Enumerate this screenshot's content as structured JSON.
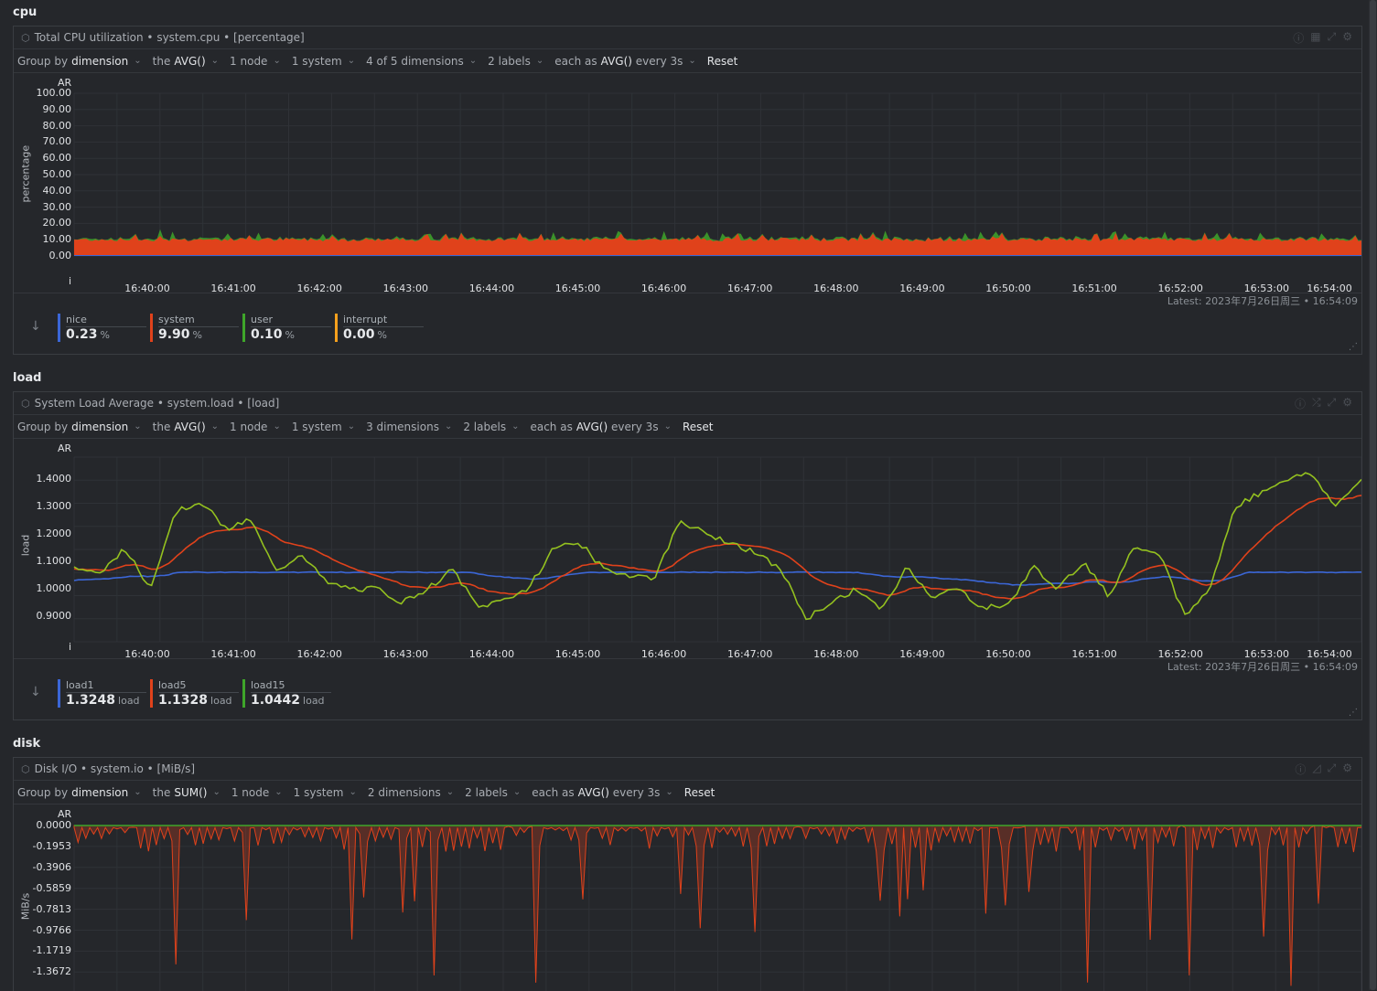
{
  "sections": [
    {
      "title": "cpu",
      "header": {
        "title": "Total CPU utilization • system.cpu • [percentage]"
      },
      "toolbar": {
        "group_by": "Group by",
        "group_by_value": "dimension",
        "agg_prefix": "the",
        "agg_value": "AVG()",
        "nodes": "1 node",
        "systems": "1 system",
        "dimensions": "4 of 5 dimensions",
        "labels": "2 labels",
        "each_prefix": "each as",
        "each_value": "AVG()",
        "each_suffix": "every 3s",
        "reset": "Reset"
      },
      "chart": {
        "ar": "AR",
        "ylabel": "percentage",
        "yticks": [
          "100.00",
          "90.00",
          "80.00",
          "70.00",
          "60.00",
          "50.00",
          "40.00",
          "30.00",
          "20.00",
          "10.00",
          "0.00"
        ],
        "xticks": [
          "16:40:00",
          "16:41:00",
          "16:42:00",
          "16:43:00",
          "16:44:00",
          "16:45:00",
          "16:46:00",
          "16:47:00",
          "16:48:00",
          "16:49:00",
          "16:50:00",
          "16:51:00",
          "16:52:00",
          "16:53:00",
          "16:54:00"
        ],
        "i_label": "i"
      },
      "latest": "Latest: 2023年7月26日周三 • 16:54:09",
      "legend": [
        {
          "name": "nice",
          "value": "0.23",
          "unit": "%",
          "color": "#3b66d6"
        },
        {
          "name": "system",
          "value": "9.90",
          "unit": "%",
          "color": "#e0421b"
        },
        {
          "name": "user",
          "value": "0.10",
          "unit": "%",
          "color": "#3fa62a"
        },
        {
          "name": "interrupt",
          "value": "0.00",
          "unit": "%",
          "color": "#f5a01d"
        }
      ]
    },
    {
      "title": "load",
      "header": {
        "title": "System Load Average • system.load • [load]"
      },
      "toolbar": {
        "group_by": "Group by",
        "group_by_value": "dimension",
        "agg_prefix": "the",
        "agg_value": "AVG()",
        "nodes": "1 node",
        "systems": "1 system",
        "dimensions": "3 dimensions",
        "labels": "2 labels",
        "each_prefix": "each as",
        "each_value": "AVG()",
        "each_suffix": "every 3s",
        "reset": "Reset"
      },
      "chart": {
        "ar": "AR",
        "ylabel": "load",
        "yticks": [
          "1.4000",
          "1.3000",
          "1.2000",
          "1.1000",
          "1.0000",
          "0.9000"
        ],
        "xticks": [
          "16:40:00",
          "16:41:00",
          "16:42:00",
          "16:43:00",
          "16:44:00",
          "16:45:00",
          "16:46:00",
          "16:47:00",
          "16:48:00",
          "16:49:00",
          "16:50:00",
          "16:51:00",
          "16:52:00",
          "16:53:00",
          "16:54:00"
        ],
        "i_label": "i"
      },
      "latest": "Latest: 2023年7月26日周三 • 16:54:09",
      "legend": [
        {
          "name": "load1",
          "value": "1.3248",
          "unit": "load",
          "color": "#3b66d6"
        },
        {
          "name": "load5",
          "value": "1.1328",
          "unit": "load",
          "color": "#e0421b"
        },
        {
          "name": "load15",
          "value": "1.0442",
          "unit": "load",
          "color": "#3fa62a"
        }
      ]
    },
    {
      "title": "disk",
      "header": {
        "title": "Disk I/O • system.io • [MiB/s]"
      },
      "toolbar": {
        "group_by": "Group by",
        "group_by_value": "dimension",
        "agg_prefix": "the",
        "agg_value": "SUM()",
        "nodes": "1 node",
        "systems": "1 system",
        "dimensions": "2 dimensions",
        "labels": "2 labels",
        "each_prefix": "each as",
        "each_value": "AVG()",
        "each_suffix": "every 3s",
        "reset": "Reset"
      },
      "chart": {
        "ar": "AR",
        "ylabel": "MiB/s",
        "yticks": [
          "0.0000",
          "-0.1953",
          "-0.3906",
          "-0.5859",
          "-0.7813",
          "-0.9766",
          "-1.1719",
          "-1.3672"
        ]
      }
    }
  ],
  "colors": {
    "nice": "#3b66d6",
    "system": "#e0421b",
    "user": "#3fa62a",
    "interrupt": "#f5a01d",
    "load_line": "#94c11f"
  }
}
